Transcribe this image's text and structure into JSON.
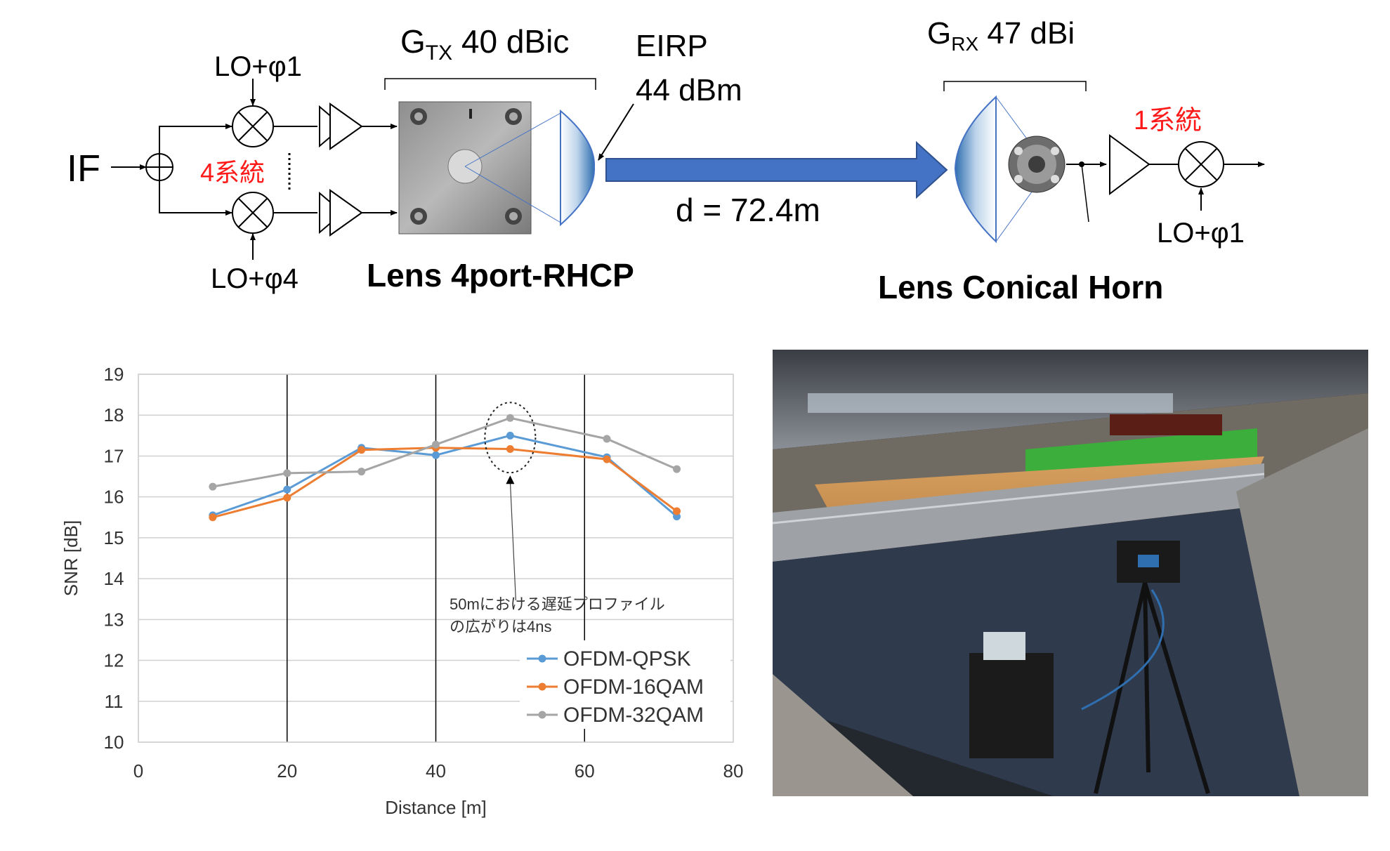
{
  "diagram": {
    "if_label": "IF",
    "lo_top": "LO+φ1",
    "lo_bottom": "LO+φ4",
    "lo_rx": "LO+φ1",
    "tx_channels": "4系統",
    "rx_channels": "1系統",
    "gtx_prefix": "G",
    "gtx_sub": "TX",
    "gtx_value": " 40 dBic",
    "grx_prefix": "G",
    "grx_sub": "RX",
    "grx_value": " 47 dBi",
    "eirp_line1": "EIRP",
    "eirp_line2": "44 dBm",
    "distance_label": "d = 72.4m",
    "tx_antenna_name": "Lens 4port-RHCP",
    "rx_antenna_name": "Lens Conical Horn",
    "colors": {
      "arrow": "#4472c4",
      "red_text": "#ff1a1a"
    }
  },
  "chart_data": {
    "type": "line",
    "x": [
      10,
      20,
      30,
      40,
      50,
      63,
      72.4
    ],
    "series": [
      {
        "name": "OFDM-QPSK",
        "color": "#5b9bd5",
        "values": [
          15.55,
          16.18,
          17.2,
          17.02,
          17.5,
          16.97,
          15.52
        ]
      },
      {
        "name": "OFDM-16QAM",
        "color": "#ed7d31",
        "values": [
          15.5,
          15.98,
          17.15,
          17.2,
          17.17,
          16.92,
          15.65
        ]
      },
      {
        "name": "OFDM-32QAM",
        "color": "#a5a5a5",
        "values": [
          16.25,
          16.58,
          16.62,
          17.28,
          17.93,
          17.42,
          16.68
        ]
      }
    ],
    "xlabel": "Distance [m]",
    "ylabel": "SNR [dB]",
    "xlim": [
      0,
      80
    ],
    "ylim": [
      10,
      19
    ],
    "xticks": [
      "0",
      "20",
      "40",
      "60",
      "80"
    ],
    "yticks": [
      "10",
      "11",
      "12",
      "13",
      "14",
      "15",
      "16",
      "17",
      "18",
      "19"
    ],
    "annotation_line1": "50mにおける遅延プロファイル",
    "annotation_line2": "の広がりは4ns",
    "grid": true,
    "legend_position": "bottom-right"
  },
  "photo": {
    "description_icon": "gymnasium-measurement-photo-icon"
  }
}
